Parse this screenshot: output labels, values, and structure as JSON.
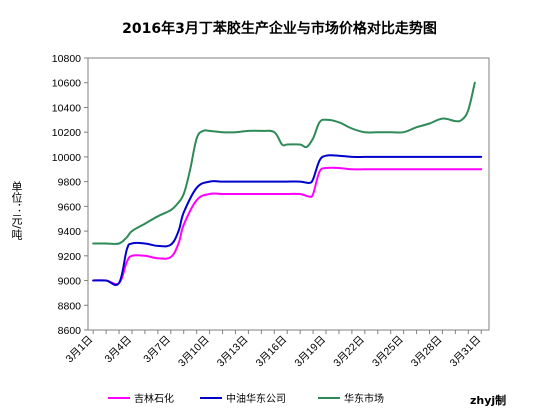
{
  "chart_data": {
    "type": "line",
    "title": "2016年3月丁苯胶生产企业与市场价格对比走势图",
    "ylabel": "单位：元/吨",
    "ylim": [
      8600,
      10800
    ],
    "yticks": [
      8600,
      8800,
      9000,
      9200,
      9400,
      9600,
      9800,
      10000,
      10200,
      10400,
      10600,
      10800
    ],
    "xtick_labels": [
      "3月1日",
      "3月4日",
      "3月7日",
      "3月10日",
      "3月13日",
      "3月16日",
      "3月19日",
      "3月22日",
      "3月25日",
      "3月28日",
      "3月31日"
    ],
    "x_days": [
      1,
      4,
      7,
      10,
      13,
      16,
      19,
      22,
      25,
      28,
      31
    ],
    "legend_position": "bottom",
    "series": [
      {
        "name": "吉林石化",
        "color": "#ff00ff",
        "points": [
          [
            1,
            9000
          ],
          [
            2,
            9000
          ],
          [
            3,
            8980
          ],
          [
            3.6,
            9150
          ],
          [
            4,
            9200
          ],
          [
            5,
            9200
          ],
          [
            6,
            9180
          ],
          [
            7,
            9190
          ],
          [
            7.6,
            9300
          ],
          [
            8,
            9450
          ],
          [
            9,
            9650
          ],
          [
            10,
            9700
          ],
          [
            11,
            9700
          ],
          [
            12,
            9700
          ],
          [
            13,
            9700
          ],
          [
            14,
            9700
          ],
          [
            15,
            9700
          ],
          [
            16,
            9700
          ],
          [
            17,
            9700
          ],
          [
            17.7,
            9680
          ],
          [
            18,
            9700
          ],
          [
            18.5,
            9880
          ],
          [
            19,
            9910
          ],
          [
            20,
            9910
          ],
          [
            21,
            9900
          ],
          [
            22,
            9900
          ],
          [
            23,
            9900
          ],
          [
            24,
            9900
          ],
          [
            25,
            9900
          ],
          [
            26,
            9900
          ],
          [
            27,
            9900
          ],
          [
            28,
            9900
          ],
          [
            29,
            9900
          ],
          [
            30,
            9900
          ],
          [
            31,
            9900
          ]
        ]
      },
      {
        "name": "中油华东公司",
        "color": "#0000cc",
        "points": [
          [
            1,
            9000
          ],
          [
            2,
            9000
          ],
          [
            3,
            8980
          ],
          [
            3.6,
            9250
          ],
          [
            4,
            9300
          ],
          [
            5,
            9300
          ],
          [
            6,
            9280
          ],
          [
            7,
            9290
          ],
          [
            7.6,
            9400
          ],
          [
            8,
            9550
          ],
          [
            9,
            9750
          ],
          [
            10,
            9800
          ],
          [
            11,
            9800
          ],
          [
            12,
            9800
          ],
          [
            13,
            9800
          ],
          [
            14,
            9800
          ],
          [
            15,
            9800
          ],
          [
            16,
            9800
          ],
          [
            17,
            9800
          ],
          [
            17.7,
            9790
          ],
          [
            18,
            9820
          ],
          [
            18.5,
            9970
          ],
          [
            19,
            10010
          ],
          [
            20,
            10010
          ],
          [
            21,
            10000
          ],
          [
            22,
            10000
          ],
          [
            23,
            10000
          ],
          [
            24,
            10000
          ],
          [
            25,
            10000
          ],
          [
            26,
            10000
          ],
          [
            27,
            10000
          ],
          [
            28,
            10000
          ],
          [
            29,
            10000
          ],
          [
            30,
            10000
          ],
          [
            31,
            10000
          ]
        ]
      },
      {
        "name": "华东市场",
        "color": "#2e8b57",
        "points": [
          [
            1,
            9300
          ],
          [
            2,
            9300
          ],
          [
            3,
            9300
          ],
          [
            3.6,
            9350
          ],
          [
            4,
            9400
          ],
          [
            5,
            9460
          ],
          [
            6,
            9520
          ],
          [
            7,
            9570
          ],
          [
            7.5,
            9620
          ],
          [
            8,
            9700
          ],
          [
            8.5,
            9900
          ],
          [
            9,
            10150
          ],
          [
            9.5,
            10210
          ],
          [
            10,
            10210
          ],
          [
            11,
            10200
          ],
          [
            12,
            10200
          ],
          [
            13,
            10210
          ],
          [
            14,
            10210
          ],
          [
            15,
            10200
          ],
          [
            15.6,
            10100
          ],
          [
            16,
            10100
          ],
          [
            17,
            10100
          ],
          [
            17.5,
            10080
          ],
          [
            18,
            10150
          ],
          [
            18.5,
            10280
          ],
          [
            19,
            10300
          ],
          [
            20,
            10280
          ],
          [
            21,
            10230
          ],
          [
            22,
            10200
          ],
          [
            23,
            10200
          ],
          [
            24,
            10200
          ],
          [
            25,
            10200
          ],
          [
            26,
            10240
          ],
          [
            27,
            10270
          ],
          [
            28,
            10310
          ],
          [
            29,
            10290
          ],
          [
            29.5,
            10300
          ],
          [
            30,
            10380
          ],
          [
            30.5,
            10600
          ]
        ]
      }
    ],
    "watermark": "zhyj制"
  }
}
